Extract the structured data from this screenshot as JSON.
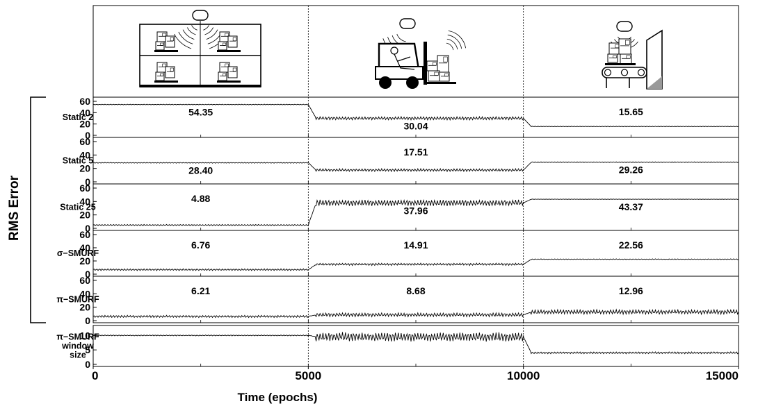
{
  "chart_data": {
    "type": "line",
    "xlabel": "Time (epochs)",
    "ylabel": "RMS Error",
    "xlim": [
      0,
      15000
    ],
    "x_ticks": [
      0,
      5000,
      10000,
      15000
    ],
    "x_tick_labels": [
      "0",
      "5000",
      "10000",
      "15000"
    ],
    "segment_boundaries": [
      5000,
      10000
    ],
    "scenario_icons": [
      "shelves-reader-icon",
      "forklift-reader-icon",
      "conveyor-reader-icon"
    ],
    "panels": [
      {
        "label": "Static 2",
        "ylim": [
          0,
          60
        ],
        "y_ticks": [
          0,
          20,
          40,
          60
        ],
        "segment_values": [
          54.35,
          30.04,
          15.65
        ],
        "annotations": [
          "54.35",
          "30.04",
          "15.65"
        ],
        "oscillation": [
          0.6,
          2.5,
          0.4
        ]
      },
      {
        "label": "Static 5",
        "ylim": [
          0,
          60
        ],
        "y_ticks": [
          0,
          20,
          40,
          60
        ],
        "segment_values": [
          28.4,
          17.51,
          29.26
        ],
        "annotations": [
          "28.40",
          "17.51",
          "29.26"
        ],
        "oscillation": [
          0.6,
          1.8,
          0.5
        ]
      },
      {
        "label": "Static 25",
        "ylim": [
          0,
          60
        ],
        "y_ticks": [
          0,
          20,
          40,
          60
        ],
        "segment_values": [
          4.88,
          37.96,
          43.37
        ],
        "annotations": [
          "4.88",
          "37.96",
          "43.37"
        ],
        "oscillation": [
          0.8,
          4,
          0.3
        ]
      },
      {
        "label": "σ−SMURF",
        "ylim": [
          0,
          60
        ],
        "y_ticks": [
          0,
          20,
          40,
          60
        ],
        "segment_values": [
          6.76,
          14.91,
          22.56
        ],
        "annotations": [
          "6.76",
          "14.91",
          "22.56"
        ],
        "oscillation": [
          1.2,
          1.5,
          0.6
        ]
      },
      {
        "label": "π−SMURF",
        "ylim": [
          0,
          60
        ],
        "y_ticks": [
          0,
          20,
          40,
          60
        ],
        "segment_values": [
          6.21,
          8.68,
          12.96
        ],
        "annotations": [
          "6.21",
          "8.68",
          "12.96"
        ],
        "oscillation": [
          1.5,
          2.5,
          3
        ]
      },
      {
        "label": "π−SMURF window size",
        "label_lines": [
          "π−SMURF",
          "window",
          "size"
        ],
        "ylim": [
          0,
          12
        ],
        "y_ticks": [
          0,
          5,
          10
        ],
        "segment_values": [
          10,
          9.5,
          4
        ],
        "annotations": [],
        "oscillation": [
          0.15,
          1.4,
          0.3
        ]
      }
    ]
  }
}
